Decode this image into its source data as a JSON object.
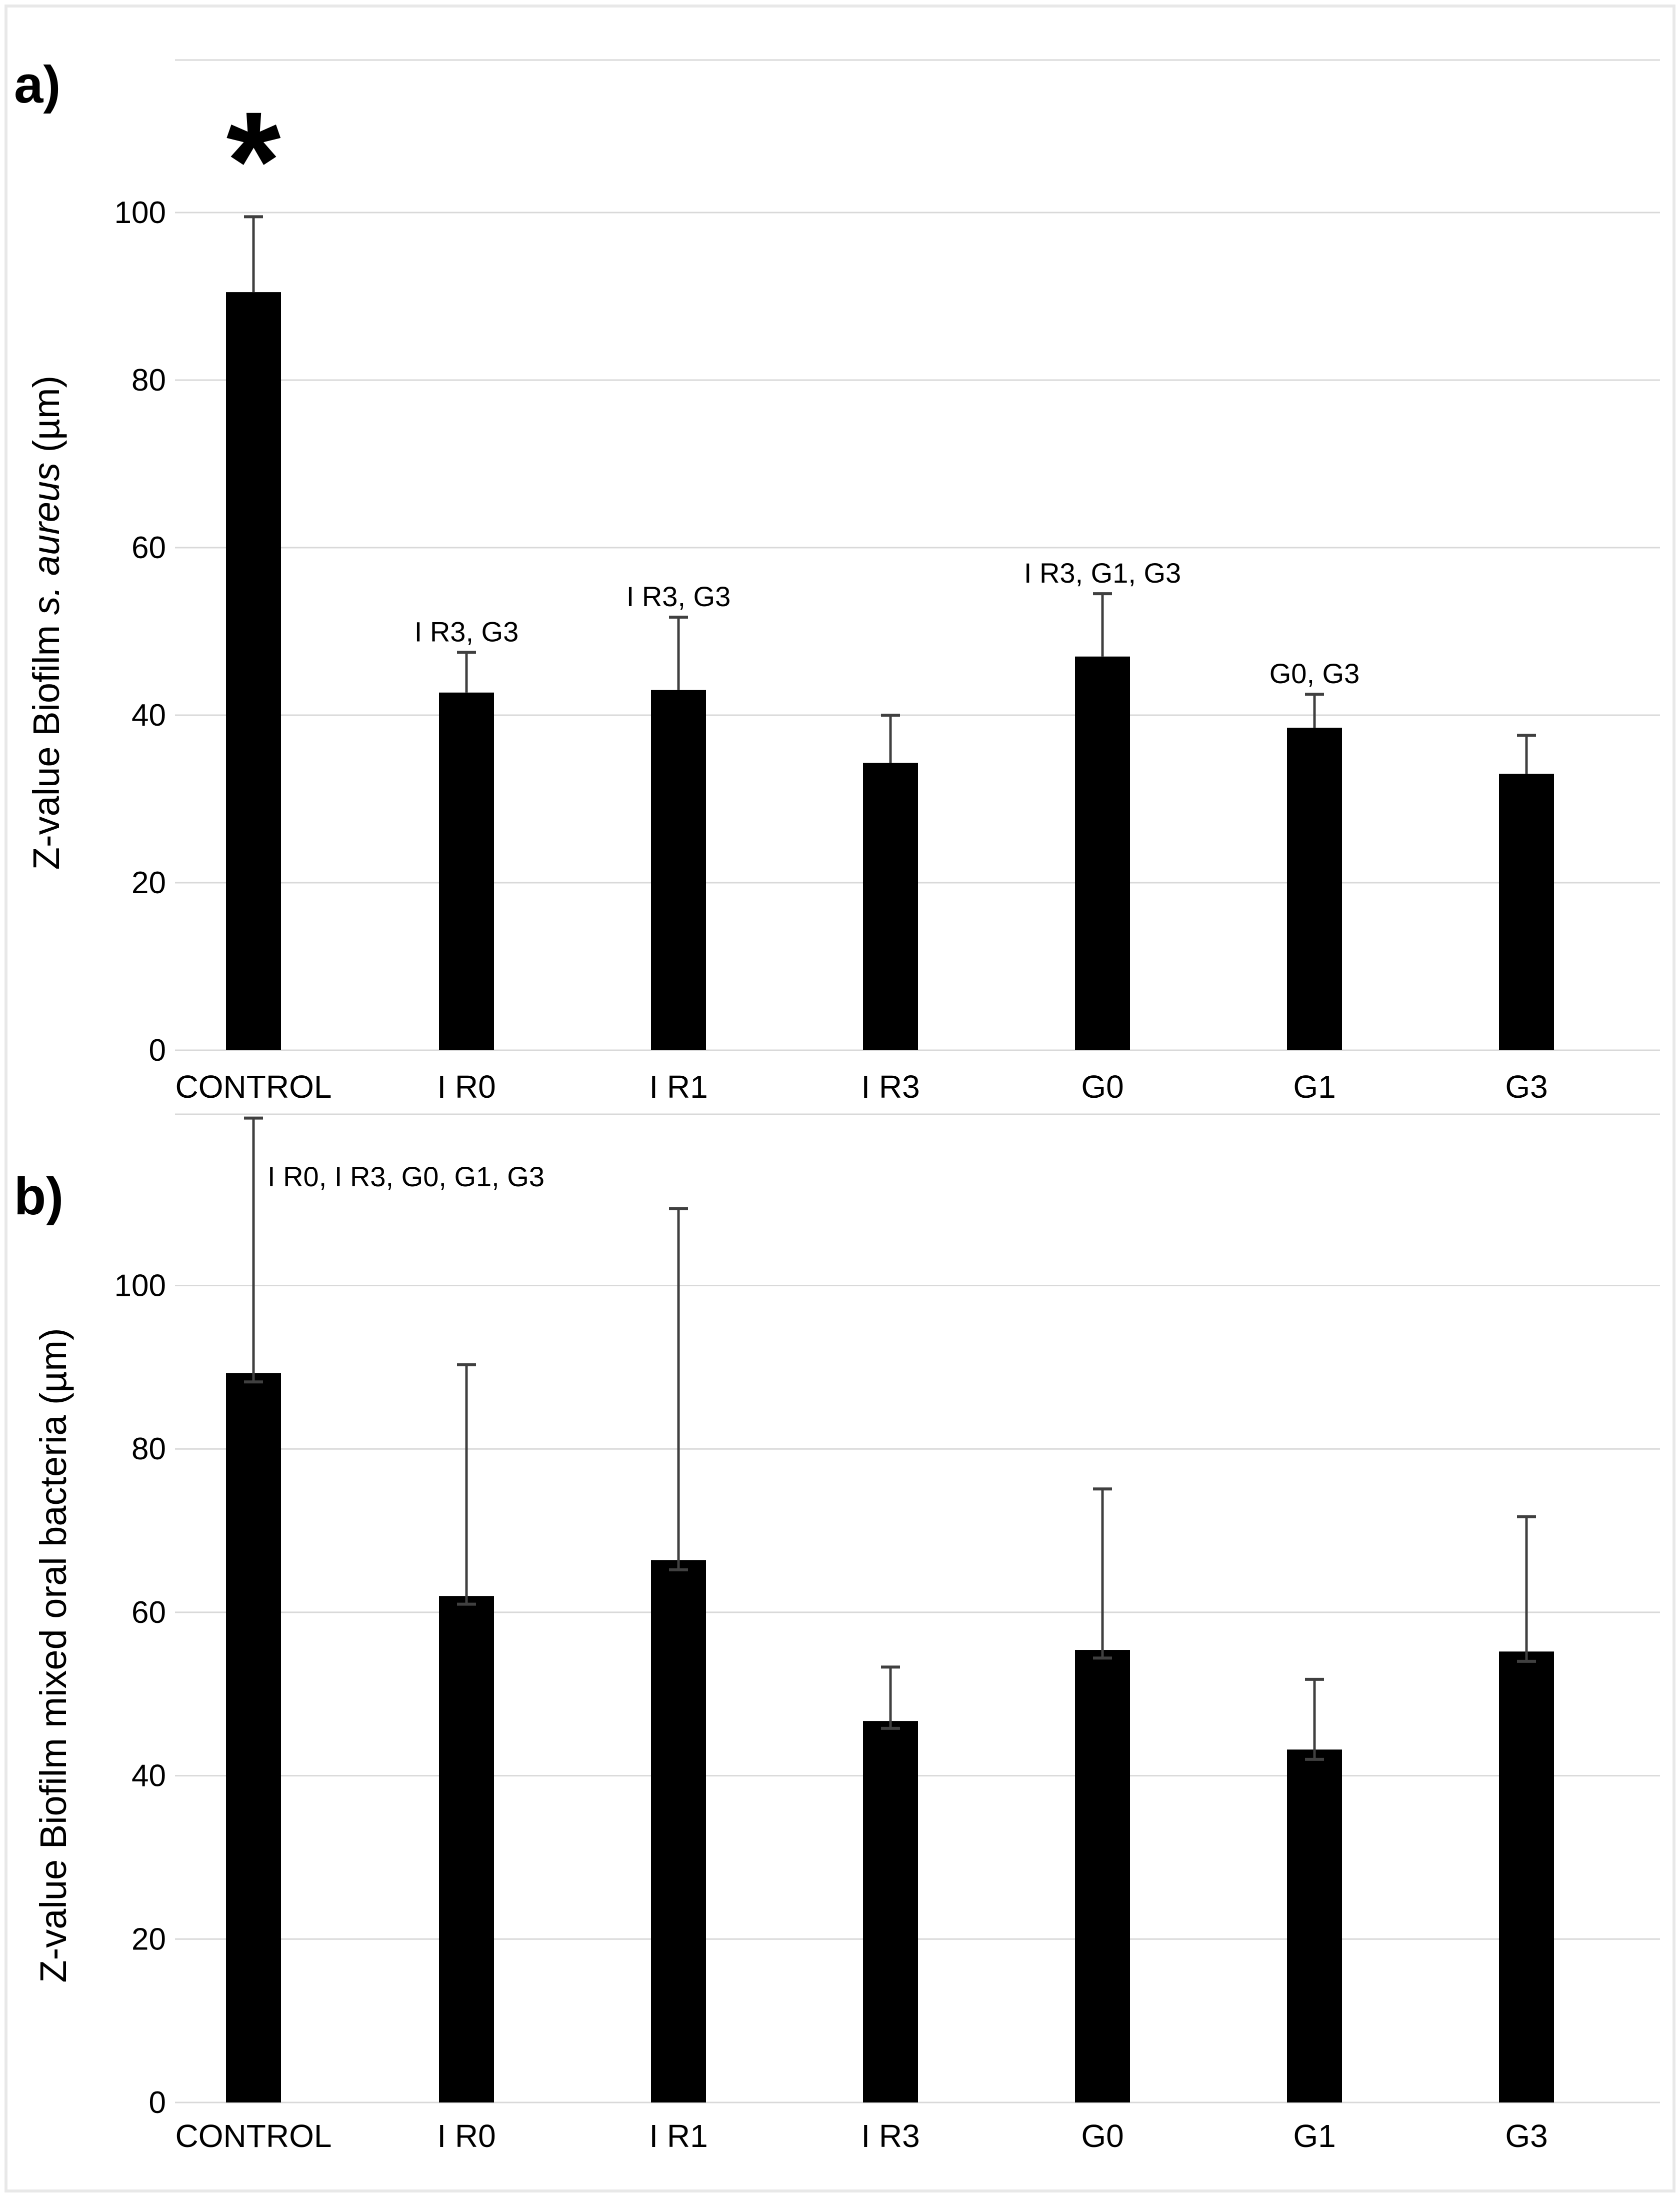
{
  "colors": {
    "bar": "#000000",
    "gridline": "#d9d9d9",
    "axis_line": "#d9d9d9",
    "error_bar": "#404040",
    "figure_border": "#e8e8e8",
    "text": "#000000",
    "annotation_text": "#1a1a1a"
  },
  "chart_data": [
    {
      "type": "bar",
      "panel_label": "a)",
      "ylabel": "Z-value Biofilm s. aureus (µm)",
      "ylabel_parts": {
        "prefix": "Z-value Biofilm ",
        "italic": "s. aureus",
        "suffix": " (µm)"
      },
      "categories": [
        "CONTROL",
        "I R0",
        "I R1",
        "I R3",
        "G0",
        "G1",
        "G3"
      ],
      "values": [
        90.5,
        42.7,
        43.0,
        34.3,
        47.0,
        38.5,
        33.0
      ],
      "error_up_to": [
        99.5,
        47.5,
        51.7,
        40.0,
        54.5,
        42.5,
        37.6
      ],
      "error_low_to": [
        90.5,
        42.7,
        43.0,
        34.3,
        47.0,
        38.5,
        33.0
      ],
      "annotations": [
        "",
        "I R3, G3",
        "I R3, G3",
        "",
        "I R3, G1, G3",
        "G0, G3",
        ""
      ],
      "significance": [
        "*",
        "",
        "",
        "",
        "",
        "",
        ""
      ],
      "yticks": [
        0,
        20,
        40,
        60,
        80,
        100
      ],
      "ylim": [
        0,
        118.2
      ],
      "grid": true,
      "legend": "none",
      "xlabel": ""
    },
    {
      "type": "bar",
      "panel_label": "b)",
      "ylabel": "Z-value Biofilm mixed oral bacteria (µm)",
      "ylabel_parts": {
        "prefix": "Z-value Biofilm mixed oral bacteria (µm)",
        "italic": "",
        "suffix": ""
      },
      "categories": [
        "CONTROL",
        "I R0",
        "I R1",
        "I R3",
        "G0",
        "G1",
        "G3"
      ],
      "values": [
        89.3,
        62.0,
        66.4,
        46.7,
        55.4,
        43.2,
        55.2
      ],
      "error_up_to": [
        120.5,
        90.3,
        109.4,
        53.3,
        75.1,
        51.8,
        71.7
      ],
      "error_low_to": [
        88.2,
        61.0,
        65.2,
        45.8,
        54.4,
        42.0,
        54.0
      ],
      "annotations": [
        "I R0, I R3, G0, G1, G3",
        "",
        "",
        "",
        "",
        "",
        ""
      ],
      "significance": [
        "",
        "",
        "",
        "",
        "",
        "",
        ""
      ],
      "yticks": [
        0,
        20,
        40,
        60,
        80,
        100
      ],
      "ylim": [
        0,
        120.9
      ],
      "grid": true,
      "legend": "none",
      "xlabel": ""
    }
  ]
}
